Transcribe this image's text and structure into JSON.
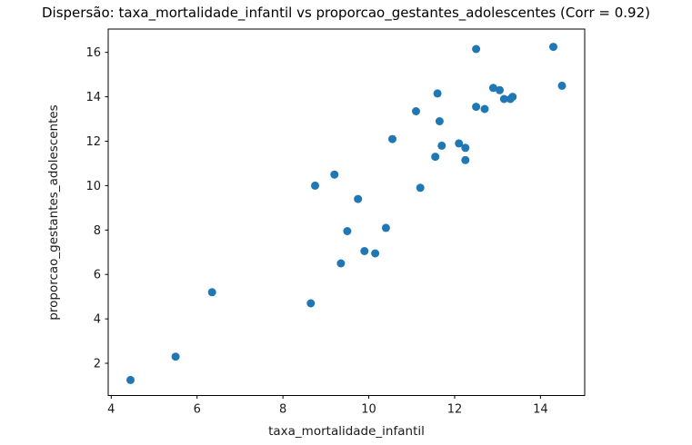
{
  "chart_data": {
    "type": "scatter",
    "title": "Dispersão: taxa_mortalidade_infantil vs proporcao_gestantes_adolescentes (Corr = 0.92)",
    "xlabel": "taxa_mortalidade_infantil",
    "ylabel": "proporcao_gestantes_adolescentes",
    "correlation": 0.92,
    "marker_color": "#1f77b4",
    "spine_color": "#000000",
    "background_color": "#ffffff",
    "grid": false,
    "legend": "none",
    "xlim": [
      3.93,
      15.03
    ],
    "ylim": [
      0.55,
      17.05
    ],
    "x_ticks": [
      4,
      6,
      8,
      10,
      12,
      14
    ],
    "y_ticks": [
      2,
      4,
      6,
      8,
      10,
      12,
      14,
      16
    ],
    "points": [
      [
        4.45,
        1.25
      ],
      [
        5.5,
        2.3
      ],
      [
        6.35,
        5.2
      ],
      [
        8.65,
        4.7
      ],
      [
        8.75,
        10.0
      ],
      [
        9.2,
        10.5
      ],
      [
        9.35,
        6.5
      ],
      [
        9.5,
        7.95
      ],
      [
        9.75,
        9.4
      ],
      [
        9.9,
        7.05
      ],
      [
        10.15,
        6.95
      ],
      [
        10.4,
        8.1
      ],
      [
        10.55,
        12.1
      ],
      [
        11.1,
        13.35
      ],
      [
        11.2,
        9.9
      ],
      [
        11.55,
        11.3
      ],
      [
        11.6,
        14.15
      ],
      [
        11.65,
        12.9
      ],
      [
        11.7,
        11.8
      ],
      [
        12.1,
        11.9
      ],
      [
        12.25,
        11.7
      ],
      [
        12.25,
        11.15
      ],
      [
        12.5,
        16.15
      ],
      [
        12.5,
        13.55
      ],
      [
        12.7,
        13.45
      ],
      [
        12.9,
        14.4
      ],
      [
        13.05,
        14.3
      ],
      [
        13.15,
        13.9
      ],
      [
        13.3,
        13.9
      ],
      [
        13.35,
        14.0
      ],
      [
        14.3,
        16.25
      ],
      [
        14.5,
        14.5
      ]
    ]
  }
}
